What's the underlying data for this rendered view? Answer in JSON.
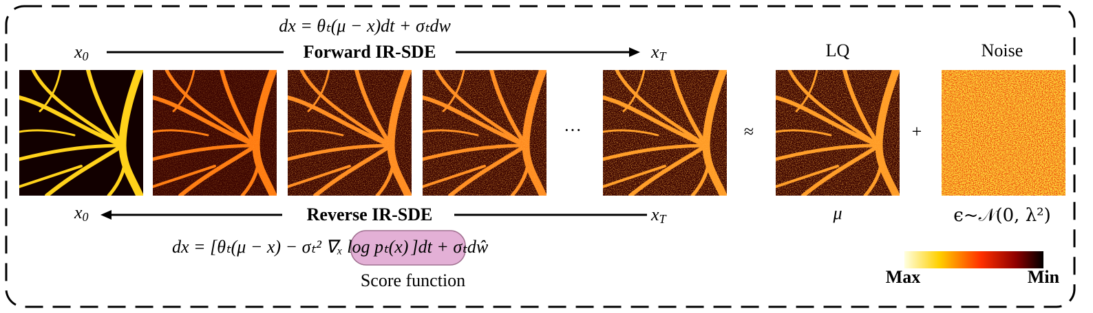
{
  "forward": {
    "equation": "dx = θₜ(μ − x)dt + σₜdw",
    "start": {
      "base": "x",
      "sub": "0"
    },
    "label": "Forward IR-SDE",
    "end": {
      "base": "x",
      "sub": "T"
    }
  },
  "reverse": {
    "start": {
      "base": "x",
      "sub": "0"
    },
    "label": "Reverse IR-SDE",
    "end": {
      "base": "x",
      "sub": "T"
    },
    "equation": [
      "dx = [θₜ(μ − x) − σₜ²",
      "∇ₓ log pₜ(x)",
      "]dt + σₜdŵ"
    ],
    "score_label": "Score function"
  },
  "ellipsis": "···",
  "approx": "≈",
  "plus": "+",
  "lq": {
    "title": "LQ",
    "symbol": "μ"
  },
  "noise": {
    "title": "Noise",
    "symbol": "ϵ~𝒩(0, λ²)"
  },
  "colorbar": {
    "max": "Max",
    "min": "Min"
  }
}
